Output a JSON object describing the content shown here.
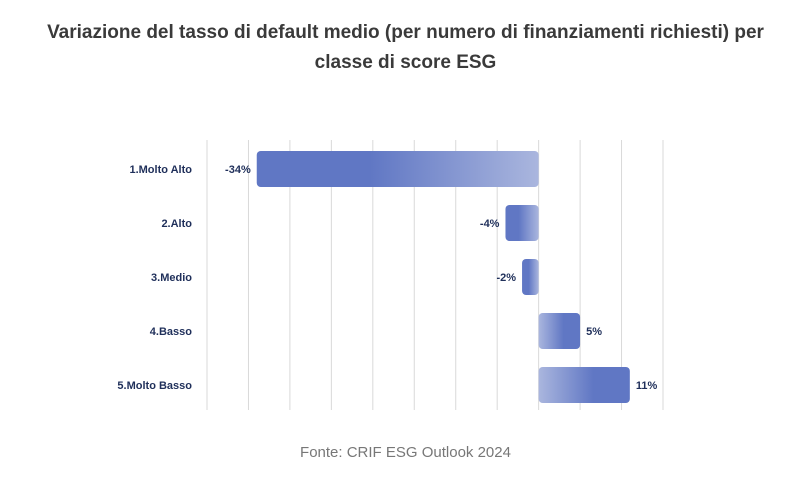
{
  "chart_data": {
    "type": "bar",
    "orientation": "horizontal",
    "title": "Variazione del tasso di default medio (per numero di finanziamenti richiesti) per classe di score ESG",
    "title_lines": [
      "Variazione del tasso di default medio (per numero di finanziamenti richiesti) per",
      "classe di score ESG"
    ],
    "categories": [
      "1.Molto Alto",
      "2.Alto",
      "3.Medio",
      "4.Basso",
      "5.Molto Basso"
    ],
    "values": [
      -34,
      -4,
      -2,
      5,
      11
    ],
    "data_labels": [
      "-34%",
      "-4%",
      "-2%",
      "5%",
      "11%"
    ],
    "xlim": [
      -40,
      15
    ],
    "grid_step": 5,
    "grid": true,
    "xlabel": "",
    "ylabel": "",
    "bar_color": "#6077c4",
    "bar_color_light": "#aab6de",
    "label_color": "#1f2f5a"
  },
  "source": "Fonte: CRIF ESG Outlook 2024"
}
